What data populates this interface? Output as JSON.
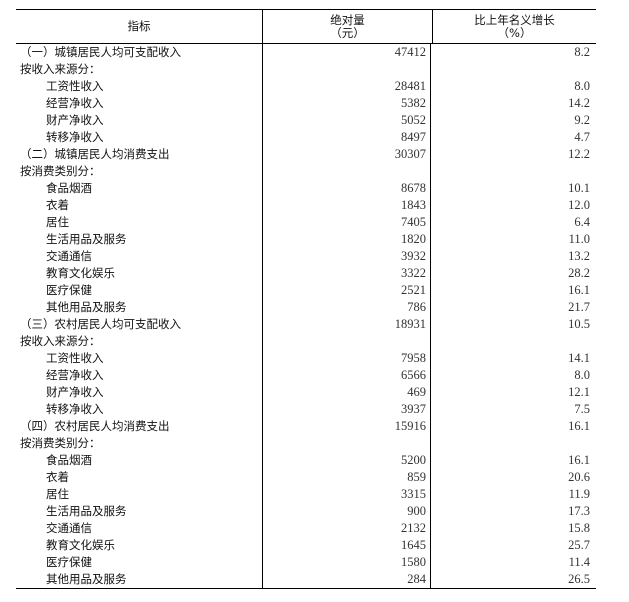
{
  "header": {
    "col1": "指标",
    "col2_line1": "绝对量",
    "col2_line2": "（元）",
    "col3_line1": "比上年名义增长",
    "col3_line2": "（%）"
  },
  "rows": [
    {
      "label": "（一）城镇居民人均可支配收入",
      "value": "47412",
      "growth": "8.2",
      "type": "section"
    },
    {
      "label": "按收入来源分：",
      "value": "",
      "growth": "",
      "type": "sub"
    },
    {
      "label": "工资性收入",
      "value": "28481",
      "growth": "8.0",
      "type": "item"
    },
    {
      "label": "经营净收入",
      "value": "5382",
      "growth": "14.2",
      "type": "item"
    },
    {
      "label": "财产净收入",
      "value": "5052",
      "growth": "9.2",
      "type": "item"
    },
    {
      "label": "转移净收入",
      "value": "8497",
      "growth": "4.7",
      "type": "item"
    },
    {
      "label": "（二）城镇居民人均消费支出",
      "value": "30307",
      "growth": "12.2",
      "type": "section"
    },
    {
      "label": "按消费类别分：",
      "value": "",
      "growth": "",
      "type": "sub"
    },
    {
      "label": "食品烟酒",
      "value": "8678",
      "growth": "10.1",
      "type": "item"
    },
    {
      "label": "衣着",
      "value": "1843",
      "growth": "12.0",
      "type": "item"
    },
    {
      "label": "居住",
      "value": "7405",
      "growth": "6.4",
      "type": "item"
    },
    {
      "label": "生活用品及服务",
      "value": "1820",
      "growth": "11.0",
      "type": "item"
    },
    {
      "label": "交通通信",
      "value": "3932",
      "growth": "13.2",
      "type": "item"
    },
    {
      "label": "教育文化娱乐",
      "value": "3322",
      "growth": "28.2",
      "type": "item"
    },
    {
      "label": "医疗保健",
      "value": "2521",
      "growth": "16.1",
      "type": "item"
    },
    {
      "label": "其他用品及服务",
      "value": "786",
      "growth": "21.7",
      "type": "item"
    },
    {
      "label": "（三）农村居民人均可支配收入",
      "value": "18931",
      "growth": "10.5",
      "type": "section"
    },
    {
      "label": "按收入来源分：",
      "value": "",
      "growth": "",
      "type": "sub"
    },
    {
      "label": "工资性收入",
      "value": "7958",
      "growth": "14.1",
      "type": "item"
    },
    {
      "label": "经营净收入",
      "value": "6566",
      "growth": "8.0",
      "type": "item"
    },
    {
      "label": "财产净收入",
      "value": "469",
      "growth": "12.1",
      "type": "item"
    },
    {
      "label": "转移净收入",
      "value": "3937",
      "growth": "7.5",
      "type": "item"
    },
    {
      "label": "（四）农村居民人均消费支出",
      "value": "15916",
      "growth": "16.1",
      "type": "section"
    },
    {
      "label": "按消费类别分：",
      "value": "",
      "growth": "",
      "type": "sub"
    },
    {
      "label": "食品烟酒",
      "value": "5200",
      "growth": "16.1",
      "type": "item"
    },
    {
      "label": "衣着",
      "value": "859",
      "growth": "20.6",
      "type": "item"
    },
    {
      "label": "居住",
      "value": "3315",
      "growth": "11.9",
      "type": "item"
    },
    {
      "label": "生活用品及服务",
      "value": "900",
      "growth": "17.3",
      "type": "item"
    },
    {
      "label": "交通通信",
      "value": "2132",
      "growth": "15.8",
      "type": "item"
    },
    {
      "label": "教育文化娱乐",
      "value": "1645",
      "growth": "25.7",
      "type": "item"
    },
    {
      "label": "医疗保健",
      "value": "1580",
      "growth": "11.4",
      "type": "item"
    },
    {
      "label": "其他用品及服务",
      "value": "284",
      "growth": "26.5",
      "type": "item"
    }
  ]
}
